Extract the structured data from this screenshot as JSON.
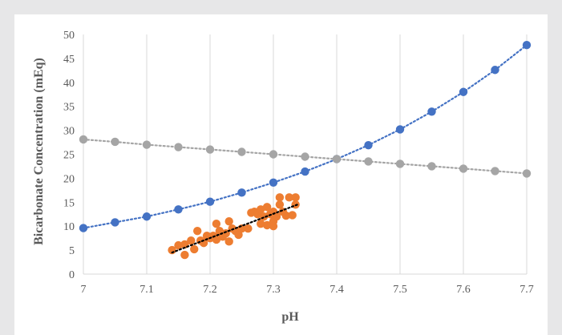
{
  "chart_data": {
    "type": "scatter",
    "title": "",
    "xlabel": "pH",
    "ylabel": "Bicarbonate  Concentration  (mEq)",
    "xlim": [
      7,
      7.7
    ],
    "ylim": [
      0,
      50
    ],
    "x_ticks": [
      7,
      7.1,
      7.2,
      7.3,
      7.4,
      7.5,
      7.6,
      7.7
    ],
    "y_ticks": [
      0,
      5,
      10,
      15,
      20,
      25,
      30,
      35,
      40,
      45,
      50
    ],
    "x_tick_labels": [
      "7",
      "7.1",
      "7.2",
      "7.3",
      "7.4",
      "7.5",
      "7.6",
      "7.7"
    ],
    "y_tick_labels": [
      "0",
      "5",
      "10",
      "15",
      "20",
      "25",
      "30",
      "35",
      "40",
      "45",
      "50"
    ],
    "grid": {
      "vertical": true,
      "horizontal": false
    },
    "legend": "none",
    "series": [
      {
        "color": "#4472c4",
        "line_style": "dotted",
        "points": [
          [
            7.0,
            9.6
          ],
          [
            7.05,
            10.8
          ],
          [
            7.1,
            12.0
          ],
          [
            7.15,
            13.5
          ],
          [
            7.2,
            15.1
          ],
          [
            7.25,
            17.0
          ],
          [
            7.3,
            19.1
          ],
          [
            7.35,
            21.4
          ],
          [
            7.4,
            24.0
          ],
          [
            7.45,
            26.9
          ],
          [
            7.5,
            30.2
          ],
          [
            7.55,
            33.9
          ],
          [
            7.6,
            38.0
          ],
          [
            7.65,
            42.6
          ],
          [
            7.7,
            47.8
          ]
        ]
      },
      {
        "color": "#a5a5a5",
        "line_style": "dotted",
        "points": [
          [
            7.0,
            28.1
          ],
          [
            7.05,
            27.6
          ],
          [
            7.1,
            27.0
          ],
          [
            7.15,
            26.5
          ],
          [
            7.2,
            26.0
          ],
          [
            7.25,
            25.5
          ],
          [
            7.3,
            25.0
          ],
          [
            7.35,
            24.5
          ],
          [
            7.4,
            24.0
          ],
          [
            7.45,
            23.5
          ],
          [
            7.5,
            23.0
          ],
          [
            7.55,
            22.5
          ],
          [
            7.6,
            22.0
          ],
          [
            7.65,
            21.5
          ],
          [
            7.7,
            21.0
          ]
        ]
      },
      {
        "color": "#ed7d31",
        "line_style": "none",
        "trendline": {
          "color": "#000000",
          "from": [
            7.14,
            4.5
          ],
          "to": [
            7.34,
            14.6
          ]
        },
        "points": [
          [
            7.14,
            5.0
          ],
          [
            7.15,
            6.0
          ],
          [
            7.16,
            6.2
          ],
          [
            7.16,
            4.0
          ],
          [
            7.17,
            7.0
          ],
          [
            7.175,
            5.2
          ],
          [
            7.18,
            9.0
          ],
          [
            7.185,
            7.0
          ],
          [
            7.19,
            6.5
          ],
          [
            7.195,
            8.0
          ],
          [
            7.2,
            7.5
          ],
          [
            7.205,
            8.0
          ],
          [
            7.21,
            7.2
          ],
          [
            7.21,
            10.5
          ],
          [
            7.215,
            9.0
          ],
          [
            7.22,
            7.8
          ],
          [
            7.225,
            8.5
          ],
          [
            7.23,
            6.8
          ],
          [
            7.23,
            11.0
          ],
          [
            7.235,
            9.5
          ],
          [
            7.24,
            9.0
          ],
          [
            7.245,
            8.2
          ],
          [
            7.25,
            9.5
          ],
          [
            7.26,
            9.5
          ],
          [
            7.265,
            12.8
          ],
          [
            7.27,
            13.0
          ],
          [
            7.275,
            12.5
          ],
          [
            7.28,
            13.5
          ],
          [
            7.28,
            10.5
          ],
          [
            7.285,
            12.0
          ],
          [
            7.29,
            14.0
          ],
          [
            7.29,
            10.2
          ],
          [
            7.295,
            12.5
          ],
          [
            7.3,
            11.0
          ],
          [
            7.3,
            13.0
          ],
          [
            7.3,
            10.0
          ],
          [
            7.305,
            12.0
          ],
          [
            7.31,
            14.5
          ],
          [
            7.31,
            16.0
          ],
          [
            7.315,
            13.0
          ],
          [
            7.32,
            12.2
          ],
          [
            7.325,
            16.0
          ],
          [
            7.33,
            12.3
          ],
          [
            7.335,
            16.0
          ],
          [
            7.335,
            14.5
          ]
        ]
      }
    ]
  }
}
